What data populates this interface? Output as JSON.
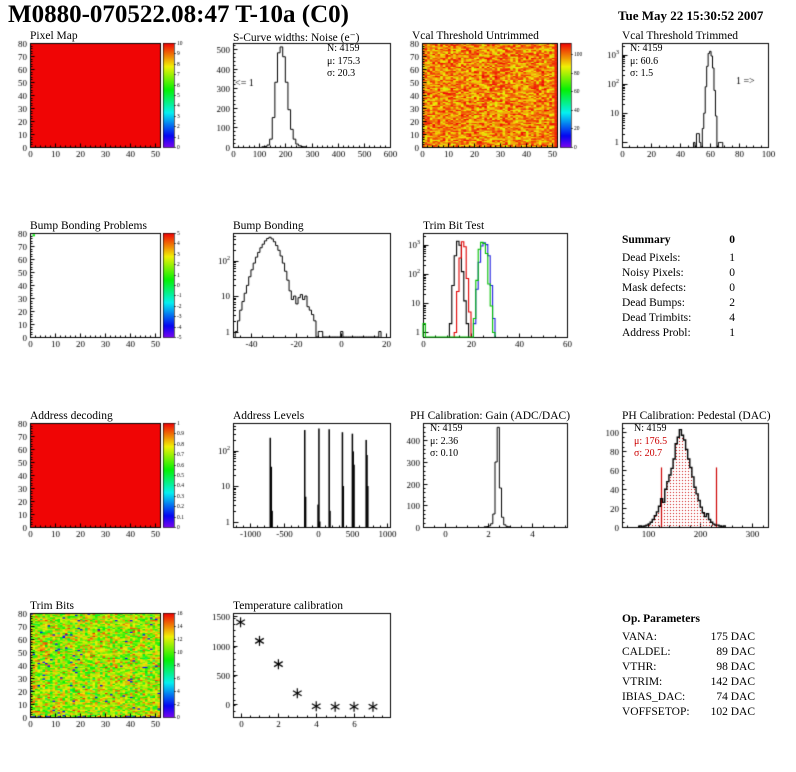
{
  "header": {
    "title": "M0880-070522.08:47 T-10a (C0)",
    "date": "Tue May 22 15:30:52 2007"
  },
  "summary": {
    "title": "Summary",
    "value": "0",
    "rows": [
      {
        "label": "Dead Pixels:",
        "value": "1"
      },
      {
        "label": "Noisy Pixels:",
        "value": "0"
      },
      {
        "label": "Mask defects:",
        "value": "0"
      },
      {
        "label": "Dead Bumps:",
        "value": "2"
      },
      {
        "label": "Dead Trimbits:",
        "value": "4"
      },
      {
        "label": "Address Probl:",
        "value": "1"
      }
    ]
  },
  "op_parameters": {
    "title": "Op. Parameters",
    "rows": [
      {
        "label": "VANA:",
        "value": "175 DAC"
      },
      {
        "label": "CALDEL:",
        "value": "89 DAC"
      },
      {
        "label": "VTHR:",
        "value": "98 DAC"
      },
      {
        "label": "VTRIM:",
        "value": "142 DAC"
      },
      {
        "label": "IBIAS_DAC:",
        "value": "74 DAC"
      },
      {
        "label": "VOFFSETOP:",
        "value": "102 DAC"
      }
    ]
  },
  "chart_data": [
    {
      "id": "pixel_map",
      "type": "heatmap",
      "title": "Pixel Map",
      "cells": {
        "nx": 52,
        "ny": 80
      },
      "mode": "uniform",
      "value": 1.0,
      "xmin": 0,
      "xmax": 52,
      "ymin": 0,
      "ymax": 80,
      "xticks": [
        0,
        10,
        20,
        30,
        40,
        50
      ],
      "yticks": [
        0,
        10,
        20,
        30,
        40,
        50,
        60,
        70,
        80
      ],
      "xminor": 2,
      "yminor": 2,
      "cbar": {
        "vmin": 0,
        "vmax": 10,
        "ticks": [
          0,
          1,
          2,
          3,
          4,
          5,
          6,
          7,
          8,
          9,
          10
        ]
      }
    },
    {
      "id": "scurve_noise",
      "type": "hist",
      "title": "S-Curve widths: Noise (e⁻)",
      "x0": 110,
      "binw": 10,
      "counts": [
        1,
        3,
        10,
        40,
        150,
        330,
        480,
        510,
        460,
        330,
        190,
        90,
        40,
        15,
        6,
        2,
        1
      ],
      "xmin": 0,
      "xmax": 600,
      "ymin": 0,
      "ymax": 530,
      "xticks": [
        0,
        100,
        200,
        300,
        400,
        500,
        600
      ],
      "yticks": [
        0,
        100,
        200,
        300,
        400,
        500
      ],
      "xminor": 20,
      "yminor": 20,
      "color": "#000",
      "stats": [
        "N: 4159",
        "μ: 175.3",
        "σ: 20.3"
      ],
      "ann": [
        {
          "x": 8,
          "y": 310,
          "text": "<= 1"
        }
      ]
    },
    {
      "id": "vcal_untrimmed",
      "type": "heatmap",
      "title": "Vcal Threshold Untrimmed",
      "cells": {
        "nx": 52,
        "ny": 80
      },
      "mode": "noise",
      "seed": 20070522,
      "noise": {
        "lo": 84,
        "span": 28
      },
      "hot_last_col": true,
      "xmin": 0,
      "xmax": 52,
      "ymin": 0,
      "ymax": 80,
      "xticks": [
        0,
        10,
        20,
        30,
        40,
        50
      ],
      "yticks": [
        0,
        10,
        20,
        30,
        40,
        50,
        60,
        70,
        80
      ],
      "xminor": 2,
      "yminor": 2,
      "cbar": {
        "vmin": 0,
        "vmax": 112,
        "ticks": [
          0,
          20,
          40,
          60,
          80,
          100
        ]
      }
    },
    {
      "id": "vcal_trimmed",
      "type": "hist",
      "title": "Vcal Threshold Trimmed",
      "x0": 49,
      "binw": 1,
      "counts": [
        1,
        0,
        2,
        2,
        1,
        0,
        3,
        10,
        80,
        400,
        1100,
        1300,
        900,
        350,
        60,
        8,
        0,
        1,
        1,
        1
      ],
      "xmin": 0,
      "xmax": 100,
      "ylog": true,
      "ymax": 2500,
      "ydecades": [
        0,
        1,
        2,
        3
      ],
      "xticks": [
        0,
        20,
        40,
        60,
        80,
        100
      ],
      "xminor": 5,
      "color": "#000",
      "stats": [
        "N: 4159",
        "μ: 60.6",
        "σ:  1.5"
      ],
      "ann": [
        {
          "x": 78,
          "y": 100,
          "text": "1 =>"
        }
      ]
    },
    {
      "id": "bump_problems",
      "type": "heatmap",
      "title": "Bump Bonding Problems",
      "cells": {
        "nx": 52,
        "ny": 80
      },
      "mode": "empty",
      "marks": [
        {
          "x": 1,
          "y": 78,
          "v": 0.55
        }
      ],
      "xmin": 0,
      "xmax": 52,
      "ymin": 0,
      "ymax": 80,
      "xticks": [
        0,
        10,
        20,
        30,
        40,
        50
      ],
      "yticks": [
        0,
        10,
        20,
        30,
        40,
        50,
        60,
        70,
        80
      ],
      "xminor": 2,
      "yminor": 2,
      "cbar": {
        "vmin": -5,
        "vmax": 5,
        "ticks": [
          -5,
          -4,
          -3,
          -2,
          -1,
          0,
          1,
          2,
          3,
          4,
          5
        ]
      }
    },
    {
      "id": "bump_bonding",
      "type": "hist",
      "title": "Bump Bonding",
      "x0": -47,
      "binw": 1,
      "counts": [
        1,
        2,
        4,
        7,
        12,
        20,
        35,
        55,
        85,
        125,
        170,
        230,
        290,
        360,
        420,
        455,
        410,
        340,
        265,
        195,
        135,
        85,
        50,
        28,
        14,
        8,
        10,
        6,
        9,
        11,
        8,
        10,
        5,
        4,
        3,
        2,
        0,
        1,
        1,
        0,
        0,
        0,
        0,
        0,
        0,
        0,
        0,
        1,
        0,
        0,
        0,
        0,
        0,
        0,
        0,
        0,
        0,
        0,
        0,
        0,
        0,
        0,
        0,
        0,
        1
      ],
      "xmin": -48,
      "xmax": 22,
      "ylog": true,
      "ymax": 600,
      "ydecades": [
        0,
        1,
        2
      ],
      "xticks": [
        -40,
        -20,
        0,
        20
      ],
      "xminor": 5,
      "color": "#000"
    },
    {
      "id": "trim_bit_test",
      "type": "multihist",
      "title": "Trim Bit Test",
      "series": [
        {
          "color": "#000000",
          "x0": 11,
          "binw": 1,
          "counts": [
            2,
            40,
            420,
            1300,
            950,
            120,
            12,
            2
          ]
        },
        {
          "color": "#e00000",
          "x0": 13,
          "binw": 1,
          "counts": [
            1,
            25,
            350,
            1250,
            850,
            70,
            5
          ]
        },
        {
          "color": "#2020e0",
          "x0": 21,
          "binw": 1,
          "counts": [
            2,
            30,
            250,
            900,
            1150,
            1000,
            420,
            40,
            3
          ]
        },
        {
          "color": "#00c000",
          "x0": 0,
          "binw": 1,
          "counts": [
            2,
            0,
            0,
            0,
            0,
            0,
            0,
            0,
            0,
            0,
            0,
            0,
            0,
            0,
            0,
            0,
            0,
            0,
            0,
            0,
            0,
            3,
            60,
            700,
            1200,
            1100,
            500,
            45,
            8,
            1
          ]
        }
      ],
      "xmin": 0,
      "xmax": 60,
      "ylog": true,
      "ymax": 2500,
      "ydecades": [
        0,
        1,
        2,
        3
      ],
      "xticks": [
        0,
        20,
        40,
        60
      ],
      "xminor": 5
    },
    {
      "id": "address_decoding",
      "type": "heatmap",
      "title": "Address decoding",
      "cells": {
        "nx": 52,
        "ny": 80
      },
      "mode": "uniform",
      "value": 1.0,
      "xmin": 0,
      "xmax": 52,
      "ymin": 0,
      "ymax": 80,
      "xticks": [
        0,
        10,
        20,
        30,
        40,
        50
      ],
      "yticks": [
        0,
        10,
        20,
        30,
        40,
        50,
        60,
        70,
        80
      ],
      "xminor": 2,
      "yminor": 2,
      "cbar": {
        "vmin": 0,
        "vmax": 1,
        "ticks": [
          0,
          0.1,
          0.2,
          0.3,
          0.4,
          0.5,
          0.6,
          0.7,
          0.8,
          0.9,
          1
        ]
      }
    },
    {
      "id": "address_levels",
      "type": "spikes",
      "title": "Address Levels",
      "binw": 11,
      "bars": [
        [
          -715,
          230
        ],
        [
          -700,
          35
        ],
        [
          -688,
          2
        ],
        [
          -210,
          380
        ],
        [
          -197,
          5
        ],
        [
          -15,
          3
        ],
        [
          -2,
          420
        ],
        [
          10,
          1
        ],
        [
          148,
          400
        ],
        [
          160,
          2
        ],
        [
          342,
          330
        ],
        [
          355,
          10
        ],
        [
          488,
          300
        ],
        [
          500,
          95
        ],
        [
          512,
          40
        ],
        [
          690,
          200
        ],
        [
          702,
          75
        ],
        [
          714,
          10
        ]
      ],
      "xmin": -1250,
      "xmax": 1050,
      "ylog": true,
      "ymax": 600,
      "ydecades": [
        0,
        1,
        2
      ],
      "xticks": [
        -1000,
        -500,
        0,
        500,
        1000
      ],
      "xminor": 100,
      "color": "#000"
    },
    {
      "id": "ph_gain",
      "type": "hist",
      "title": "PH Calibration: Gain (ADC/DAC)",
      "x0": 1.8,
      "binw": 0.1,
      "counts": [
        1,
        2,
        5,
        15,
        60,
        300,
        460,
        180,
        45,
        10,
        3,
        1
      ],
      "xmin": -1,
      "xmax": 5.6,
      "ymin": 0,
      "ymax": 480,
      "xticks": [
        0,
        2,
        4
      ],
      "yticks": [
        0,
        100,
        200,
        300,
        400
      ],
      "xminor": 0.5,
      "yminor": 20,
      "color": "#000",
      "stats": [
        "N: 4159",
        "μ: 2.36",
        "σ: 0.10"
      ]
    },
    {
      "id": "ph_pedestal",
      "type": "hist",
      "title": "PH Calibration: Pedestal (DAC)",
      "x0": 84,
      "binw": 4,
      "counts": [
        1,
        0,
        1,
        2,
        3,
        5,
        8,
        12,
        16,
        22,
        30,
        26,
        40,
        48,
        55,
        62,
        72,
        88,
        95,
        103,
        97,
        92,
        82,
        72,
        63,
        53,
        42,
        35,
        28,
        21,
        15,
        11,
        14,
        8,
        5,
        3,
        2,
        2,
        1,
        0,
        1
      ],
      "xmin": 50,
      "xmax": 330,
      "ymin": 0,
      "ymax": 110,
      "xticks": [
        100,
        200,
        300
      ],
      "yticks": [
        0,
        20,
        40,
        60,
        80,
        100
      ],
      "xminor": 20,
      "yminor": 5,
      "color": "#000",
      "fill": "dots-red",
      "lw": 1.4,
      "vlines": [
        {
          "x": 125,
          "h": 63,
          "color": "#cc0000"
        },
        {
          "x": 230,
          "h": 63,
          "color": "#cc0000"
        }
      ],
      "stats": [
        "N: 4159",
        "μ: 176.5",
        "σ: 20.7"
      ]
    },
    {
      "id": "trim_bits",
      "type": "heatmap",
      "title": "Trim Bits",
      "cells": {
        "nx": 52,
        "ny": 80
      },
      "mode": "noise",
      "seed": 424242,
      "noise": {
        "lo": 7,
        "span": 4.4,
        "triangular": true,
        "blue_frac": 0.018,
        "hot_frac": 0.015,
        "dark_bottom": true
      },
      "xmin": 0,
      "xmax": 52,
      "ymin": 0,
      "ymax": 80,
      "xticks": [
        0,
        10,
        20,
        30,
        40,
        50
      ],
      "yticks": [
        0,
        10,
        20,
        30,
        40,
        50,
        60,
        70,
        80
      ],
      "xminor": 2,
      "yminor": 2,
      "cbar": {
        "vmin": 0,
        "vmax": 16,
        "ticks": [
          0,
          2,
          4,
          6,
          8,
          10,
          12,
          14,
          16
        ]
      }
    },
    {
      "id": "temp_calibration",
      "type": "scatter",
      "title": "Temperature calibration",
      "points": [
        [
          0,
          1400
        ],
        [
          1,
          1080
        ],
        [
          2,
          680
        ],
        [
          3,
          180
        ],
        [
          4,
          -45
        ],
        [
          5,
          -55
        ],
        [
          6,
          -55
        ],
        [
          7,
          -55
        ]
      ],
      "xmin": -0.4,
      "xmax": 7.9,
      "ymin": -230,
      "ymax": 1560,
      "xticks": [
        0,
        2,
        4,
        6
      ],
      "yticks": [
        0,
        500,
        1000,
        1500
      ],
      "xminor": 0.5,
      "yminor": 100,
      "color": "#000"
    }
  ]
}
